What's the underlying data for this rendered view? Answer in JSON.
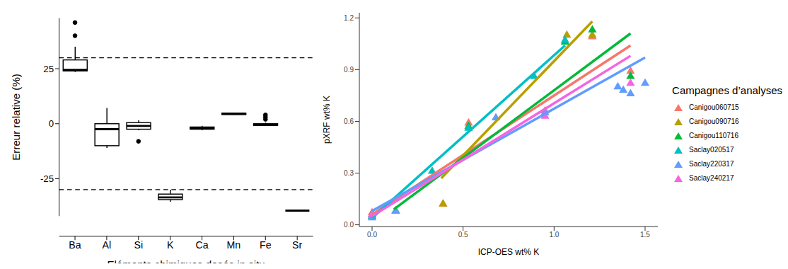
{
  "chart_data": [
    {
      "type": "box",
      "y_label": "Erreur relative (%)",
      "x_label": "Eléments chimiques dosés in situ",
      "categories": [
        "Ba",
        "Al",
        "Si",
        "K",
        "Ca",
        "Mn",
        "Fe",
        "Sr"
      ],
      "boxes": [
        {
          "min": 23.5,
          "q1": 24,
          "median": 24.5,
          "q3": 29,
          "max": 35,
          "outliers": [
            40,
            46
          ]
        },
        {
          "min": -11,
          "q1": -10,
          "median": -2.5,
          "q3": 0,
          "max": 7.2,
          "outliers": []
        },
        {
          "min": -3,
          "q1": -2.5,
          "median": -1,
          "q3": 0.5,
          "max": 1.5,
          "outliers": [
            -8
          ]
        },
        {
          "min": -35.5,
          "q1": -34.5,
          "median": -33.5,
          "q3": -32,
          "max": -30,
          "outliers": []
        },
        {
          "min": -3,
          "q1": -2.5,
          "median": -2,
          "q3": -1.5,
          "max": -1,
          "outliers": []
        },
        {
          "min": 4,
          "q1": 4.2,
          "median": 4.5,
          "q3": 4.8,
          "max": 5,
          "outliers": []
        },
        {
          "min": -1,
          "q1": -0.8,
          "median": -0.5,
          "q3": 0,
          "max": 0.5,
          "outliers": [
            2,
            3,
            4
          ]
        },
        {
          "min": -39.5,
          "q1": -39.5,
          "median": -39.5,
          "q3": -39.5,
          "max": -39.5,
          "outliers": []
        }
      ],
      "ylim": [
        -42,
        48
      ],
      "yticks": [
        -25,
        0,
        25
      ],
      "reference_lines": {
        "values": [
          30,
          -30
        ],
        "line_style": "dashed"
      },
      "grid": false
    },
    {
      "type": "scatter",
      "x_label": "ICP-OES wt% K",
      "y_label": "pXRF wt% K",
      "legend": "right",
      "legend_title": "Campagnes d’analyses",
      "xlim": [
        -0.07,
        1.57
      ],
      "xticks": [
        {
          "value": 0,
          "label": "0.0"
        },
        0.5,
        {
          "value": 1,
          "label": "1.0"
        },
        1.5
      ],
      "ylim": [
        -0.01,
        1.23
      ],
      "yticks": [
        {
          "value": 0,
          "label": "0.0"
        },
        0.3,
        0.6,
        0.9,
        1.2
      ],
      "grid": false,
      "series": [
        {
          "name": "Canigou060715",
          "color": "#F8766D",
          "marker": "triangle",
          "x": [
            0,
            0.39,
            0.53,
            0.95,
            1.21,
            1.42
          ],
          "values": [
            0.07,
            0.12,
            0.59,
            0.66,
            1.09,
            0.89
          ],
          "fit": {
            "x": [
              0,
              1.42
            ],
            "values": [
              0.06,
              1.04
            ]
          }
        },
        {
          "name": "Canigou090716",
          "color": "#B79F00",
          "marker": "triangle",
          "x": [
            0,
            0.39,
            1.07,
            1.21
          ],
          "values": [
            0.05,
            0.12,
            1.1,
            1.1
          ],
          "fit": {
            "x": [
              0.38,
              1.21
            ],
            "values": [
              0.27,
              1.18
            ]
          }
        },
        {
          "name": "Canigou110716",
          "color": "#00BA38",
          "marker": "triangle",
          "x": [
            0,
            0.13,
            0.53,
            1.06,
            1.21,
            1.42
          ],
          "values": [
            0.06,
            0.08,
            0.57,
            1.06,
            1.13,
            0.86
          ],
          "fit": {
            "x": [
              0.12,
              1.42
            ],
            "values": [
              0.09,
              1.11
            ]
          }
        },
        {
          "name": "Saclay020517",
          "color": "#00BFC4",
          "marker": "triangle",
          "x": [
            0,
            0.13,
            0.33,
            0.53,
            0.89,
            1.06
          ],
          "values": [
            0.05,
            0.08,
            0.31,
            0.56,
            0.86,
            1.07
          ],
          "fit": {
            "x": [
              0,
              1.06
            ],
            "values": [
              0.04,
              1.04
            ]
          }
        },
        {
          "name": "Saclay220317",
          "color": "#619CFF",
          "marker": "triangle",
          "x": [
            0,
            0.13,
            0.68,
            0.95,
            1.35,
            1.38,
            1.42,
            1.5
          ],
          "values": [
            0.04,
            0.08,
            0.62,
            0.65,
            0.8,
            0.78,
            0.76,
            0.82
          ],
          "fit": {
            "x": [
              0,
              1.5
            ],
            "values": [
              0.08,
              0.97
            ]
          }
        },
        {
          "name": "Saclay240217",
          "color": "#F564E3",
          "marker": "triangle",
          "x": [
            0,
            0.95,
            1.42
          ],
          "values": [
            0.06,
            0.63,
            0.82
          ],
          "fit": {
            "x": [
              0,
              1.42
            ],
            "values": [
              0.05,
              0.98
            ]
          }
        }
      ]
    }
  ]
}
